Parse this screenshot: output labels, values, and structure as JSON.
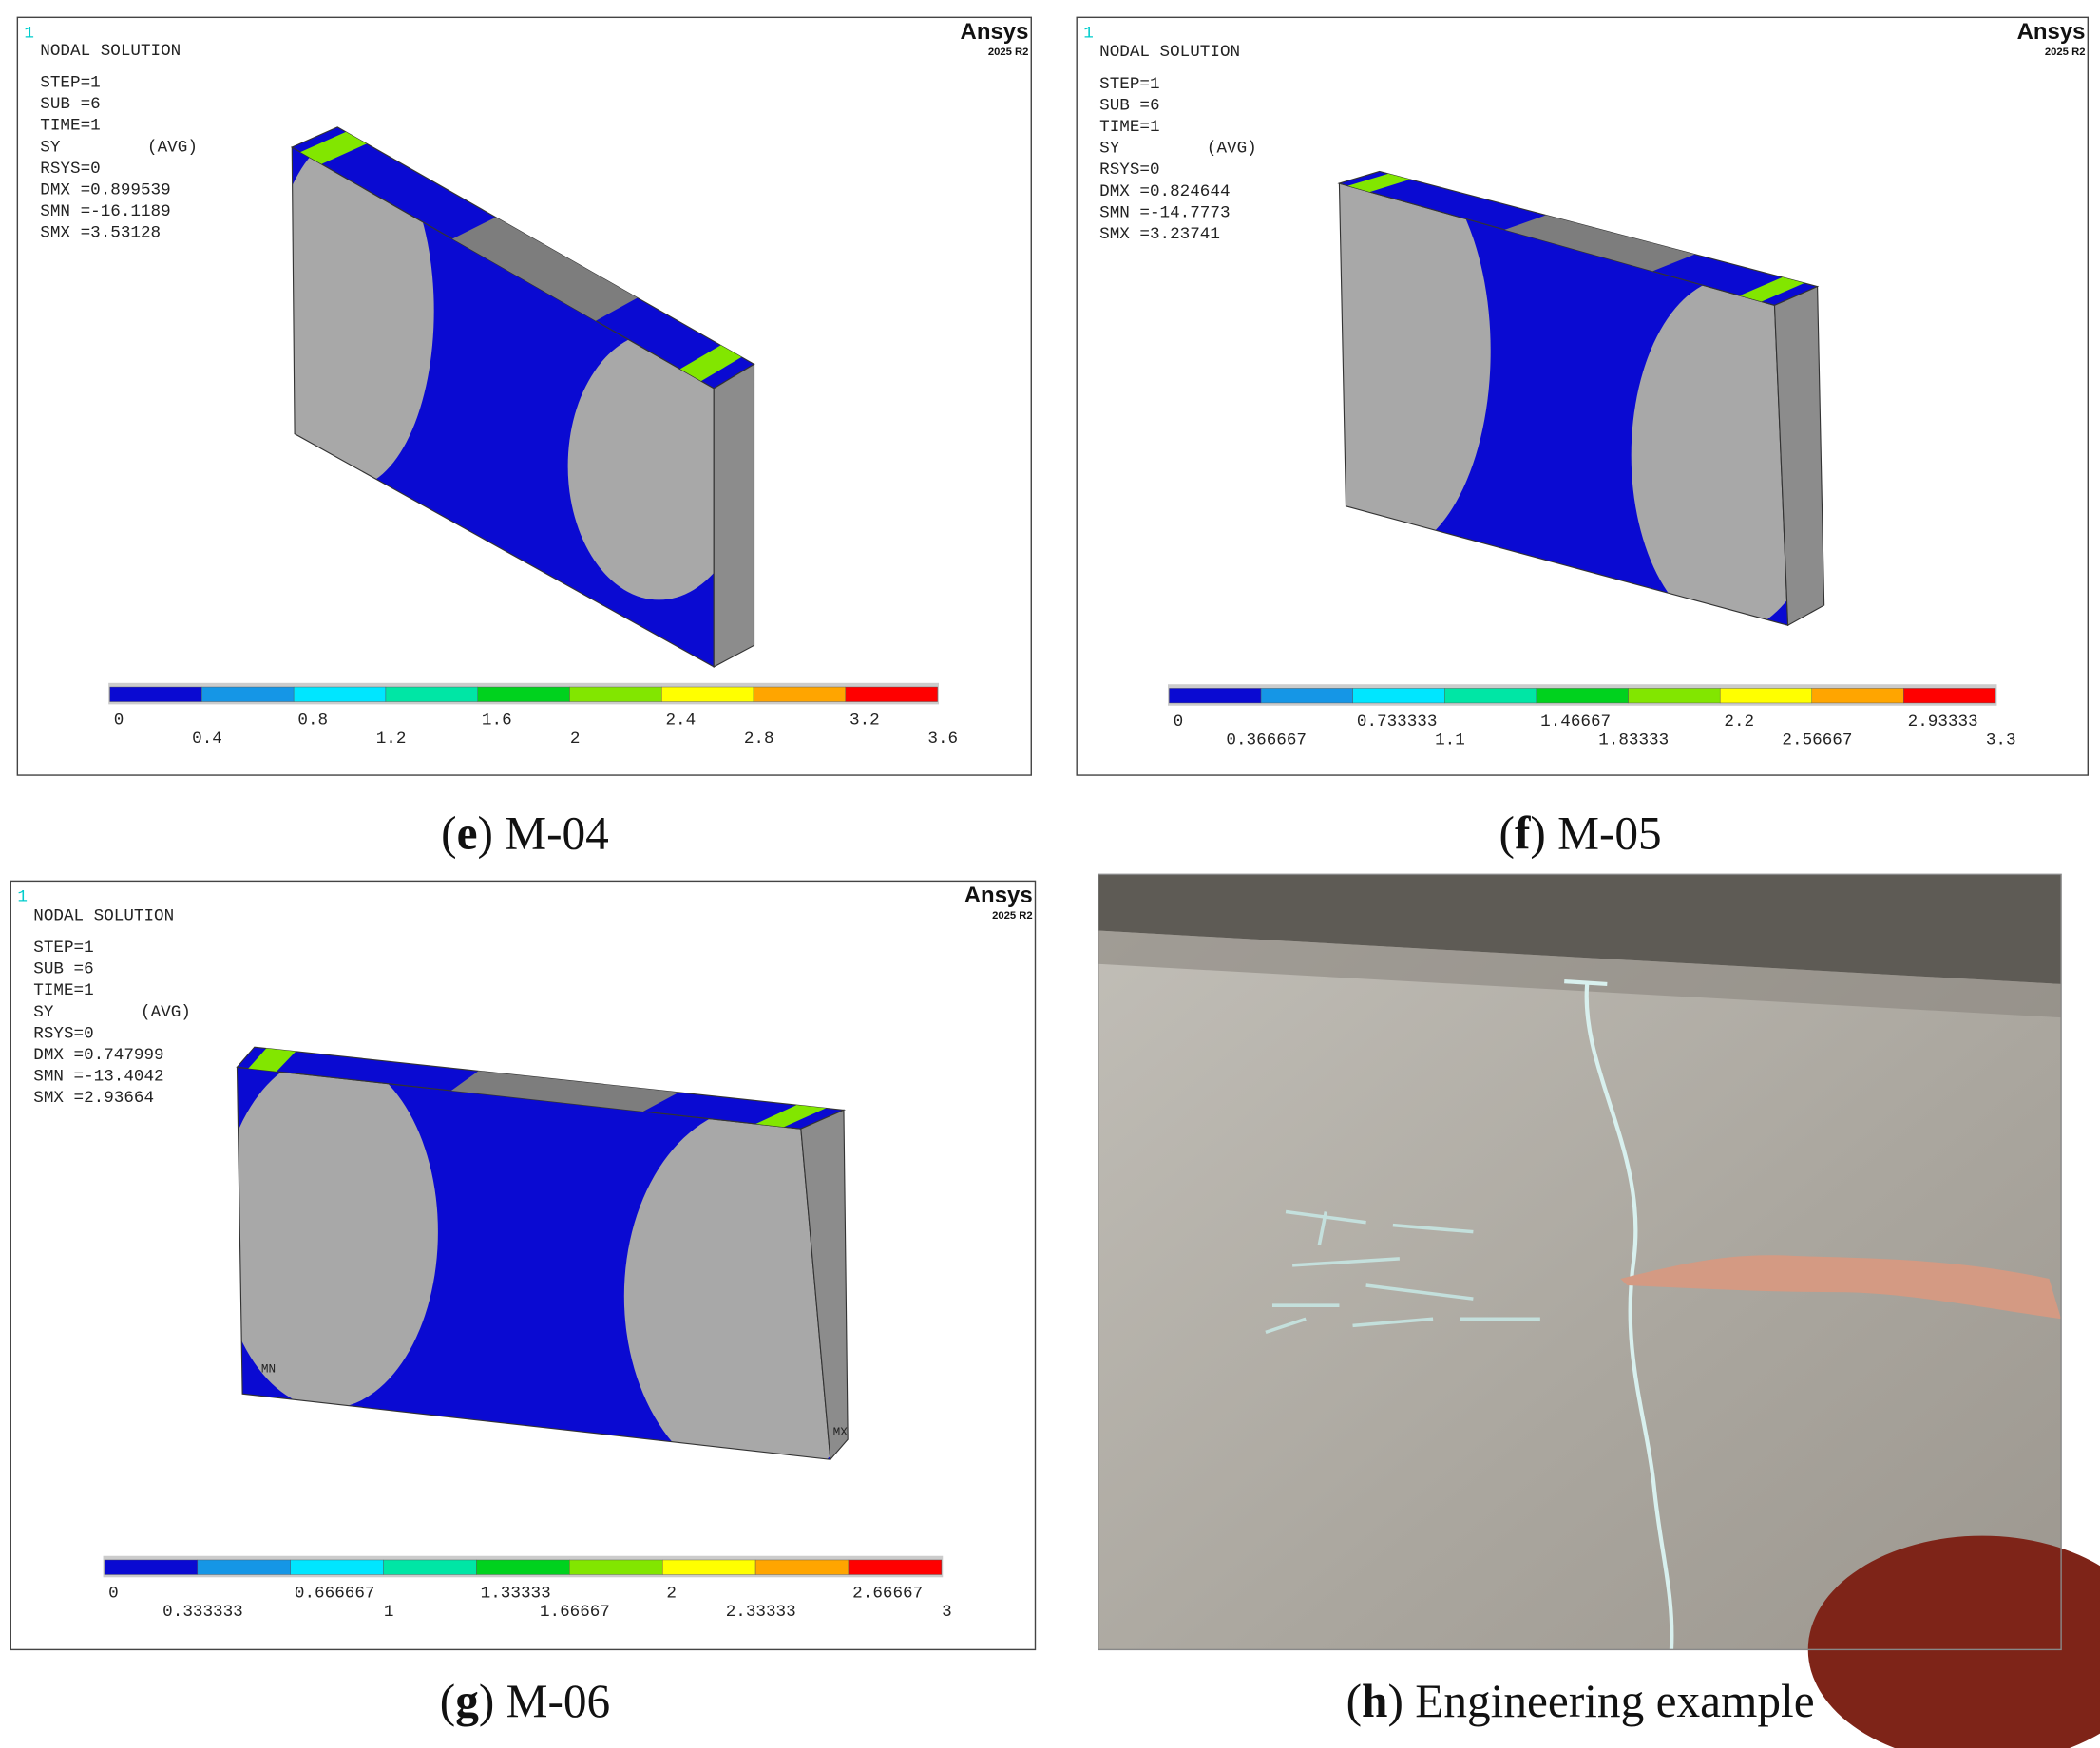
{
  "legend_colors": [
    "#0a0ad2",
    "#1596e6",
    "#00e6ff",
    "#00e6a5",
    "#00d21e",
    "#82e600",
    "#ffff00",
    "#ffa500",
    "#ff0000"
  ],
  "figures": [
    {
      "type": "ansys",
      "corner": "1",
      "brand": "Ansys",
      "version": "2025 R2",
      "title": "NODAL SOLUTION",
      "lines": [
        "STEP=1",
        "SUB =6",
        "TIME=1",
        "SY"
      ],
      "avg": "(AVG)",
      "stats": [
        "RSYS=0",
        "DMX =0.899539",
        "SMN =-16.1189",
        "SMX =3.53128"
      ],
      "legend_upper": [
        "0",
        "0.8",
        "1.6",
        "2.4",
        "3.2"
      ],
      "legend_lower": [
        "0.4",
        "1.2",
        "2",
        "2.8",
        "3.6"
      ],
      "caption": {
        "open": "(",
        "letter": "e",
        "rest": ") M-04"
      }
    },
    {
      "type": "ansys",
      "corner": "1",
      "brand": "Ansys",
      "version": "2025 R2",
      "title": "NODAL SOLUTION",
      "lines": [
        "STEP=1",
        "SUB =6",
        "TIME=1",
        "SY"
      ],
      "avg": "(AVG)",
      "stats": [
        "RSYS=0",
        "DMX =0.824644",
        "SMN =-14.7773",
        "SMX =3.23741"
      ],
      "legend_upper": [
        "0",
        "0.733333",
        "1.46667",
        "2.2",
        "2.93333"
      ],
      "legend_lower": [
        "0.366667",
        "1.1",
        "1.83333",
        "2.56667",
        "3.3"
      ],
      "caption": {
        "open": "(",
        "letter": "f",
        "rest": ") M-05"
      }
    },
    {
      "type": "ansys",
      "corner": "1",
      "brand": "Ansys",
      "version": "2025 R2",
      "title": "NODAL SOLUTION",
      "lines": [
        "STEP=1",
        "SUB =6",
        "TIME=1",
        "SY"
      ],
      "avg": "(AVG)",
      "stats": [
        "RSYS=0",
        "DMX =0.747999",
        "SMN =-13.4042",
        "SMX =2.93664"
      ],
      "legend_upper": [
        "0",
        "0.666667",
        "1.33333",
        "2",
        "2.66667"
      ],
      "legend_lower": [
        "0.333333",
        "1",
        "1.66667",
        "2.33333",
        "3"
      ],
      "markers": [
        "MN",
        "MX"
      ],
      "caption": {
        "open": "(",
        "letter": "g",
        "rest": ") M-06"
      }
    },
    {
      "type": "photo",
      "caption": {
        "open": "(",
        "letter": "h",
        "rest": ") Engineering example"
      }
    }
  ]
}
